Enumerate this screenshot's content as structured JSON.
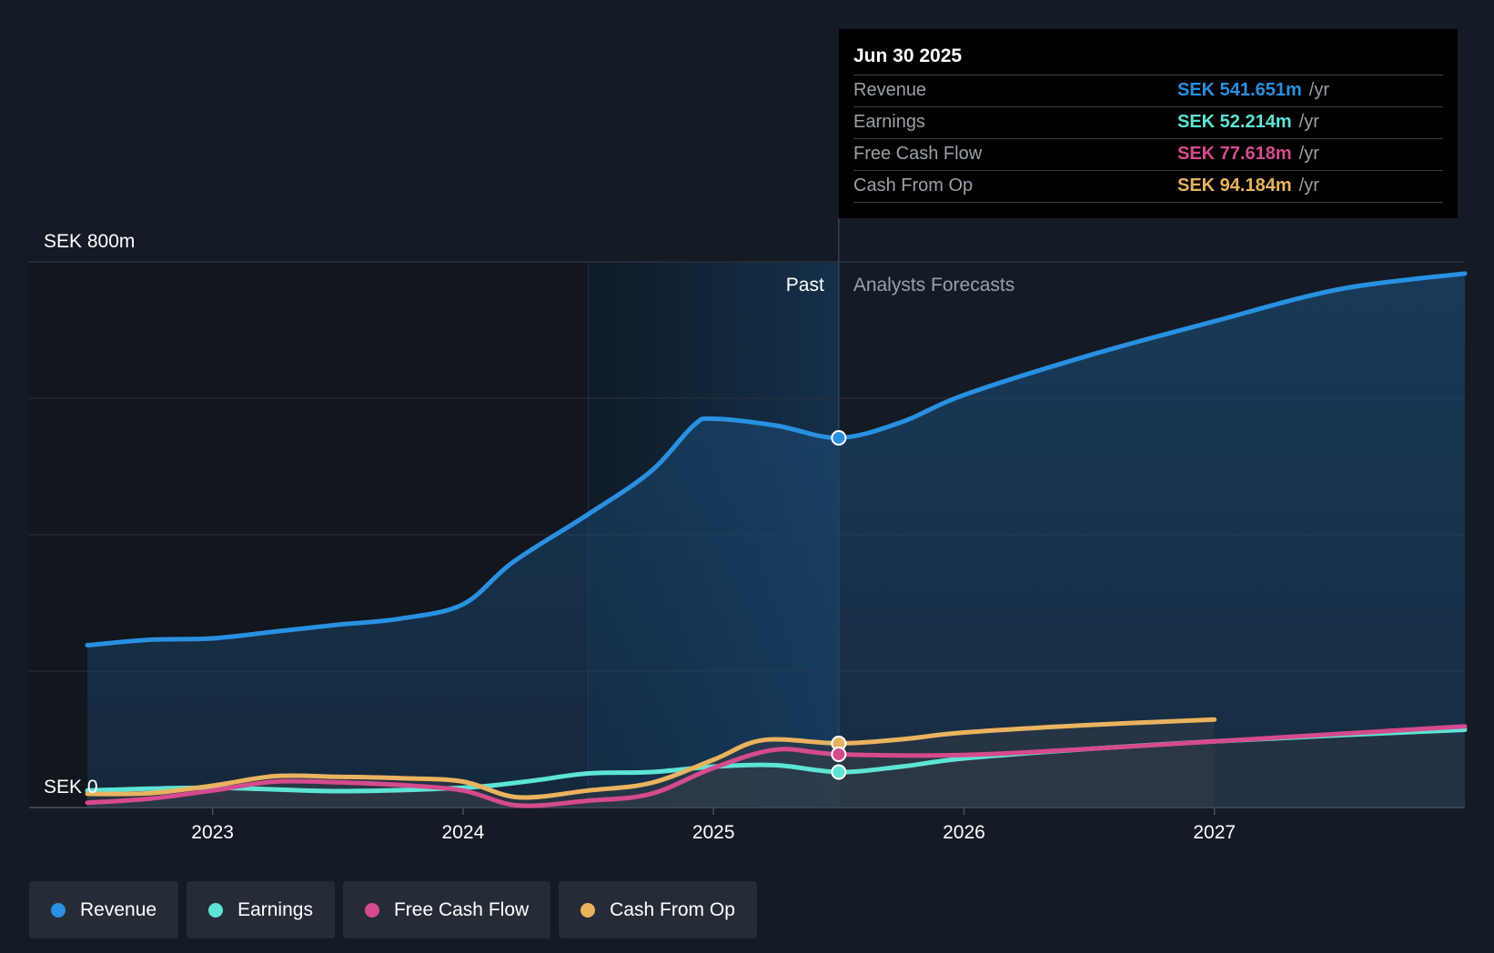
{
  "chart_data": {
    "type": "area",
    "title": "",
    "ylabel": "",
    "y_unit": "SEK",
    "ylim": [
      0,
      800
    ],
    "y_tick_labels": {
      "top": "SEK 800m",
      "bottom": "SEK 0"
    },
    "x_range": [
      2022.5,
      2028.0
    ],
    "x_ticks": [
      2023,
      2024,
      2025,
      2026,
      2027
    ],
    "x_tick_labels": [
      "2023",
      "2024",
      "2025",
      "2026",
      "2027"
    ],
    "highlight_start": 2024.5,
    "divider_x": 2025.5,
    "past_label": "Past",
    "forecast_label": "Analysts Forecasts",
    "series": [
      {
        "name": "Revenue",
        "color": "#2a90e0",
        "fill": true,
        "points": [
          [
            2022.5,
            238
          ],
          [
            2022.75,
            246
          ],
          [
            2023.0,
            248
          ],
          [
            2023.25,
            258
          ],
          [
            2023.5,
            268
          ],
          [
            2023.75,
            277
          ],
          [
            2024.0,
            298
          ],
          [
            2024.2,
            360
          ],
          [
            2024.5,
            430
          ],
          [
            2024.75,
            493
          ],
          [
            2024.92,
            560
          ],
          [
            2025.0,
            570
          ],
          [
            2025.25,
            560
          ],
          [
            2025.5,
            542
          ],
          [
            2025.75,
            565
          ],
          [
            2026.0,
            605
          ],
          [
            2026.5,
            663
          ],
          [
            2027.0,
            713
          ],
          [
            2027.5,
            760
          ],
          [
            2028.0,
            783
          ]
        ]
      },
      {
        "name": "Earnings",
        "color": "#5ee4d4",
        "fill": false,
        "points": [
          [
            2022.5,
            25
          ],
          [
            2023.0,
            29
          ],
          [
            2023.5,
            24
          ],
          [
            2024.0,
            29
          ],
          [
            2024.25,
            38
          ],
          [
            2024.5,
            50
          ],
          [
            2024.75,
            52
          ],
          [
            2025.0,
            60
          ],
          [
            2025.25,
            62
          ],
          [
            2025.5,
            52
          ],
          [
            2025.75,
            60
          ],
          [
            2026.0,
            72
          ],
          [
            2026.5,
            86
          ],
          [
            2027.0,
            97
          ],
          [
            2027.5,
            106
          ],
          [
            2028.0,
            114
          ]
        ]
      },
      {
        "name": "Free Cash Flow",
        "color": "#d44b8e",
        "fill": false,
        "points": [
          [
            2022.5,
            7
          ],
          [
            2022.75,
            13
          ],
          [
            2023.0,
            25
          ],
          [
            2023.25,
            38
          ],
          [
            2023.5,
            37
          ],
          [
            2023.75,
            33
          ],
          [
            2024.0,
            25
          ],
          [
            2024.22,
            3
          ],
          [
            2024.5,
            10
          ],
          [
            2024.75,
            20
          ],
          [
            2025.0,
            58
          ],
          [
            2025.25,
            85
          ],
          [
            2025.5,
            78
          ],
          [
            2026.0,
            77
          ],
          [
            2026.5,
            86
          ],
          [
            2027.0,
            97
          ],
          [
            2027.5,
            108
          ],
          [
            2028.0,
            119
          ]
        ]
      },
      {
        "name": "Cash From Op",
        "color": "#e9b35f",
        "fill": false,
        "points": [
          [
            2022.5,
            20
          ],
          [
            2022.75,
            21
          ],
          [
            2023.0,
            32
          ],
          [
            2023.25,
            46
          ],
          [
            2023.5,
            45
          ],
          [
            2023.75,
            43
          ],
          [
            2024.0,
            38
          ],
          [
            2024.22,
            15
          ],
          [
            2024.5,
            25
          ],
          [
            2024.75,
            36
          ],
          [
            2025.0,
            70
          ],
          [
            2025.2,
            99
          ],
          [
            2025.5,
            94
          ],
          [
            2025.75,
            100
          ],
          [
            2026.0,
            110
          ],
          [
            2026.5,
            121
          ],
          [
            2027.0,
            129
          ]
        ]
      }
    ]
  },
  "tooltip": {
    "date": "Jun 30 2025",
    "rows": [
      {
        "label": "Revenue",
        "value": "SEK 541.651m",
        "unit": "/yr",
        "color": "#2a90e0"
      },
      {
        "label": "Earnings",
        "value": "SEK 52.214m",
        "unit": "/yr",
        "color": "#5ee4d4"
      },
      {
        "label": "Free Cash Flow",
        "value": "SEK 77.618m",
        "unit": "/yr",
        "color": "#d44b8e"
      },
      {
        "label": "Cash From Op",
        "value": "SEK 94.184m",
        "unit": "/yr",
        "color": "#e9b35f"
      }
    ]
  },
  "legend": [
    {
      "label": "Revenue",
      "color": "#2a90e0"
    },
    {
      "label": "Earnings",
      "color": "#5ee4d4"
    },
    {
      "label": "Free Cash Flow",
      "color": "#d44b8e"
    },
    {
      "label": "Cash From Op",
      "color": "#e9b35f"
    }
  ]
}
